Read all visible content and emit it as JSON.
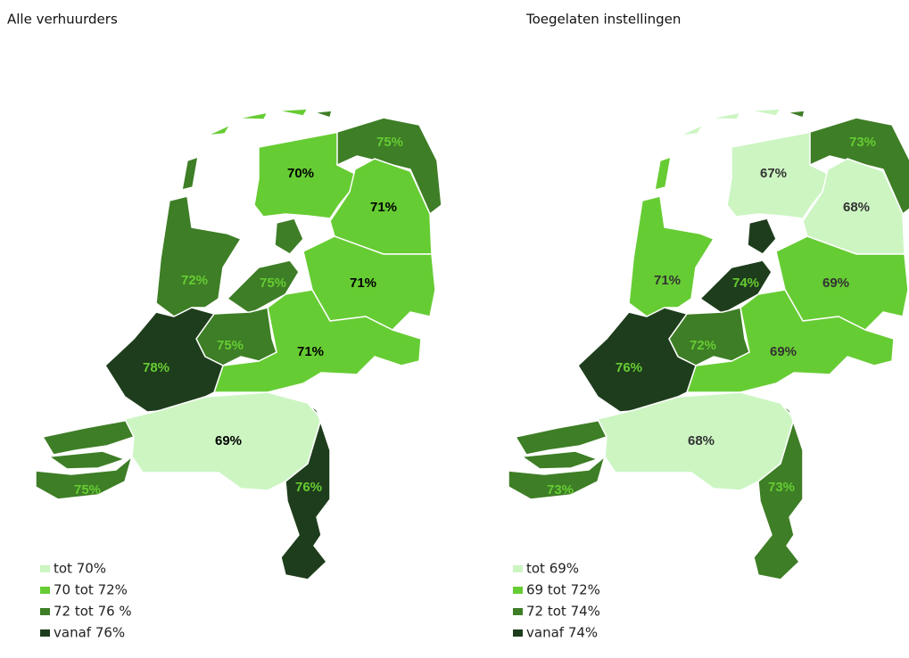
{
  "maps": [
    {
      "title": "Alle verhuurders",
      "regions": [
        {
          "label": "70%",
          "color": "#66cc33",
          "label_color": "#000000"
        },
        {
          "label": "75%",
          "color": "#3e7e26",
          "label_color": "#66cc33"
        },
        {
          "label": "71%",
          "color": "#66cc33",
          "label_color": "#000000"
        },
        {
          "label": "72%",
          "color": "#3e7e26",
          "label_color": "#66cc33"
        },
        {
          "label": "75%",
          "color": "#3e7e26",
          "label_color": "#66cc33"
        },
        {
          "label": "71%",
          "color": "#66cc33",
          "label_color": "#000000"
        },
        {
          "label": "71%",
          "color": "#66cc33",
          "label_color": "#000000"
        },
        {
          "label": "75%",
          "color": "#3e7e26",
          "label_color": "#66cc33"
        },
        {
          "label": "78%",
          "color": "#1e3d1c",
          "label_color": "#66cc33"
        },
        {
          "label": "75%",
          "color": "#3e7e26",
          "label_color": "#66cc33"
        },
        {
          "label": "69%",
          "color": "#ccf5c2",
          "label_color": "#000000"
        },
        {
          "label": "76%",
          "color": "#1e3d1c",
          "label_color": "#66cc33"
        }
      ],
      "legend": [
        {
          "label": "tot 70%",
          "color": "#ccf5c2"
        },
        {
          "label": "70 tot 72%",
          "color": "#66cc33"
        },
        {
          "label": "72 tot 76 %",
          "color": "#3e7e26"
        },
        {
          "label": "vanaf 76%",
          "color": "#1e3d1c"
        }
      ]
    },
    {
      "title": "Toegelaten instellingen",
      "regions": [
        {
          "label": "67%",
          "color": "#ccf5c2",
          "label_color": "#333333"
        },
        {
          "label": "73%",
          "color": "#3e7e26",
          "label_color": "#66cc33"
        },
        {
          "label": "68%",
          "color": "#ccf5c2",
          "label_color": "#333333"
        },
        {
          "label": "71%",
          "color": "#66cc33",
          "label_color": "#333333"
        },
        {
          "label": "74%",
          "color": "#1e3d1c",
          "label_color": "#66cc33"
        },
        {
          "label": "69%",
          "color": "#66cc33",
          "label_color": "#333333"
        },
        {
          "label": "69%",
          "color": "#66cc33",
          "label_color": "#333333"
        },
        {
          "label": "72%",
          "color": "#3e7e26",
          "label_color": "#66cc33"
        },
        {
          "label": "76%",
          "color": "#1e3d1c",
          "label_color": "#66cc33"
        },
        {
          "label": "73%",
          "color": "#3e7e26",
          "label_color": "#66cc33"
        },
        {
          "label": "68%",
          "color": "#ccf5c2",
          "label_color": "#333333"
        },
        {
          "label": "73%",
          "color": "#3e7e26",
          "label_color": "#66cc33"
        }
      ],
      "legend": [
        {
          "label": "tot 69%",
          "color": "#ccf5c2"
        },
        {
          "label": "69 tot 72%",
          "color": "#66cc33"
        },
        {
          "label": "72 tot 74%",
          "color": "#3e7e26"
        },
        {
          "label": "vanaf 74%",
          "color": "#1e3d1c"
        }
      ]
    }
  ]
}
